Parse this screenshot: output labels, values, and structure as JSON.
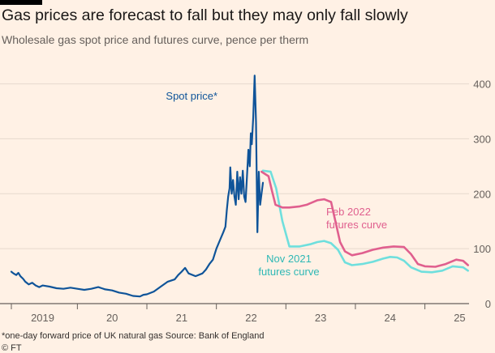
{
  "header": {
    "title": "Gas prices are forecast to fall but they may only fall slowly",
    "subtitle": "Wholesale gas spot price and futures curve, pence per therm"
  },
  "footer": {
    "footnote": "*one-day forward price of UK natural gas   Source: Bank of England",
    "credit": "© FT"
  },
  "chart_data": {
    "type": "line",
    "title": "Gas prices are forecast to fall but they may only fall slowly",
    "subtitle": "Wholesale gas spot price and futures curve, pence per therm",
    "xlabel": "",
    "ylabel": "pence per therm",
    "xlim": [
      2018.55,
      2025.1
    ],
    "ylim": [
      0,
      420
    ],
    "yticks": [
      0,
      100,
      200,
      300,
      400
    ],
    "ytick_labels": [
      "0",
      "100",
      "200",
      "300",
      "400"
    ],
    "xticks": [
      2019,
      2020,
      2021,
      2022,
      2023,
      2024,
      2025
    ],
    "xtick_labels": [
      "2019",
      "20",
      "21",
      "22",
      "23",
      "24",
      "25"
    ],
    "grid": true,
    "y_axis_side": "right",
    "series": [
      {
        "name": "Spot price*",
        "color": "#0F5499",
        "label_text": "Spot price*",
        "points": [
          [
            2018.55,
            58
          ],
          [
            2018.58,
            55
          ],
          [
            2018.62,
            52
          ],
          [
            2018.65,
            56
          ],
          [
            2018.68,
            50
          ],
          [
            2018.72,
            45
          ],
          [
            2018.75,
            40
          ],
          [
            2018.8,
            35
          ],
          [
            2018.85,
            38
          ],
          [
            2018.9,
            33
          ],
          [
            2018.95,
            30
          ],
          [
            2019.0,
            33
          ],
          [
            2019.1,
            31
          ],
          [
            2019.2,
            28
          ],
          [
            2019.3,
            27
          ],
          [
            2019.4,
            29
          ],
          [
            2019.5,
            27
          ],
          [
            2019.6,
            25
          ],
          [
            2019.7,
            27
          ],
          [
            2019.8,
            30
          ],
          [
            2019.85,
            28
          ],
          [
            2019.9,
            26
          ],
          [
            2020.0,
            24
          ],
          [
            2020.1,
            20
          ],
          [
            2020.2,
            18
          ],
          [
            2020.3,
            14
          ],
          [
            2020.4,
            13
          ],
          [
            2020.45,
            16
          ],
          [
            2020.5,
            17
          ],
          [
            2020.6,
            22
          ],
          [
            2020.7,
            31
          ],
          [
            2020.8,
            40
          ],
          [
            2020.9,
            44
          ],
          [
            2020.95,
            52
          ],
          [
            2021.0,
            58
          ],
          [
            2021.05,
            65
          ],
          [
            2021.1,
            55
          ],
          [
            2021.2,
            50
          ],
          [
            2021.3,
            55
          ],
          [
            2021.35,
            62
          ],
          [
            2021.4,
            72
          ],
          [
            2021.45,
            80
          ],
          [
            2021.5,
            100
          ],
          [
            2021.55,
            115
          ],
          [
            2021.6,
            130
          ],
          [
            2021.63,
            140
          ],
          [
            2021.65,
            170
          ],
          [
            2021.67,
            195
          ],
          [
            2021.69,
            210
          ],
          [
            2021.7,
            248
          ],
          [
            2021.72,
            200
          ],
          [
            2021.74,
            225
          ],
          [
            2021.76,
            195
          ],
          [
            2021.78,
            180
          ],
          [
            2021.8,
            240
          ],
          [
            2021.82,
            190
          ],
          [
            2021.84,
            230
          ],
          [
            2021.86,
            200
          ],
          [
            2021.88,
            242
          ],
          [
            2021.9,
            195
          ],
          [
            2021.92,
            185
          ],
          [
            2021.94,
            230
          ],
          [
            2021.96,
            280
          ],
          [
            2021.98,
            250
          ],
          [
            2021.995,
            310
          ],
          [
            2022.01,
            290
          ],
          [
            2022.03,
            340
          ],
          [
            2022.05,
            415
          ],
          [
            2022.07,
            330
          ],
          [
            2022.09,
            130
          ],
          [
            2022.11,
            240
          ],
          [
            2022.13,
            180
          ],
          [
            2022.15,
            200
          ],
          [
            2022.17,
            220
          ]
        ]
      },
      {
        "name": "Feb 2022 futures curve",
        "color": "#E05F8E",
        "label_text": [
          "Feb 2022",
          "futures curve"
        ],
        "points": [
          [
            2022.15,
            240
          ],
          [
            2022.25,
            232
          ],
          [
            2022.3,
            205
          ],
          [
            2022.35,
            180
          ],
          [
            2022.45,
            175
          ],
          [
            2022.55,
            175
          ],
          [
            2022.7,
            177
          ],
          [
            2022.8,
            180
          ],
          [
            2022.95,
            188
          ],
          [
            2023.05,
            190
          ],
          [
            2023.15,
            185
          ],
          [
            2023.28,
            112
          ],
          [
            2023.35,
            95
          ],
          [
            2023.45,
            88
          ],
          [
            2023.6,
            92
          ],
          [
            2023.75,
            98
          ],
          [
            2023.9,
            102
          ],
          [
            2024.05,
            104
          ],
          [
            2024.2,
            103
          ],
          [
            2024.3,
            90
          ],
          [
            2024.4,
            72
          ],
          [
            2024.5,
            68
          ],
          [
            2024.65,
            67
          ],
          [
            2024.8,
            72
          ],
          [
            2024.95,
            80
          ],
          [
            2025.05,
            78
          ],
          [
            2025.12,
            70
          ]
        ]
      },
      {
        "name": "Nov 2021 futures curve",
        "color": "#6FDFDD",
        "label_text": [
          "Nov 2021",
          "futures curve"
        ],
        "points": [
          [
            2022.17,
            242
          ],
          [
            2022.28,
            240
          ],
          [
            2022.36,
            210
          ],
          [
            2022.45,
            150
          ],
          [
            2022.55,
            104
          ],
          [
            2022.7,
            104
          ],
          [
            2022.85,
            108
          ],
          [
            2022.95,
            112
          ],
          [
            2023.05,
            114
          ],
          [
            2023.15,
            110
          ],
          [
            2023.25,
            98
          ],
          [
            2023.35,
            75
          ],
          [
            2023.45,
            70
          ],
          [
            2023.6,
            72
          ],
          [
            2023.75,
            76
          ],
          [
            2023.9,
            82
          ],
          [
            2024.0,
            85
          ],
          [
            2024.1,
            84
          ],
          [
            2024.2,
            78
          ],
          [
            2024.3,
            66
          ],
          [
            2024.45,
            58
          ],
          [
            2024.6,
            57
          ],
          [
            2024.75,
            60
          ],
          [
            2024.9,
            68
          ],
          [
            2025.05,
            66
          ],
          [
            2025.12,
            60
          ]
        ]
      }
    ]
  }
}
